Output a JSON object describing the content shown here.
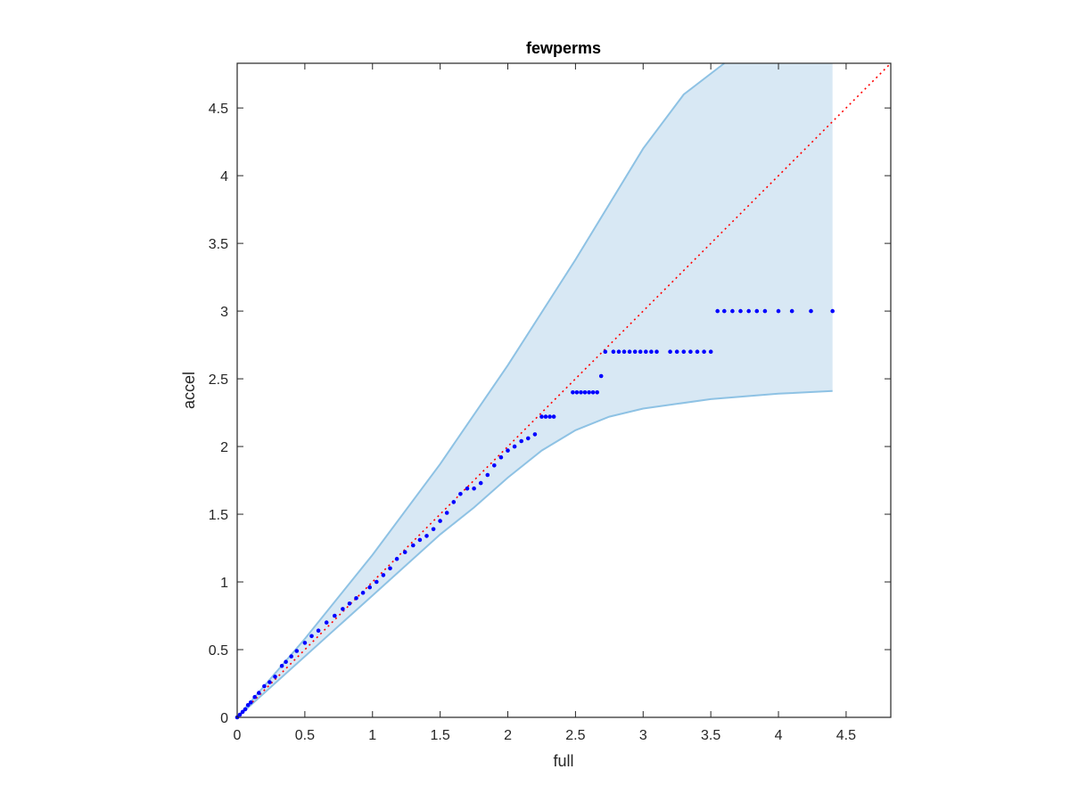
{
  "chart_data": {
    "type": "scatter",
    "title": "fewperms",
    "xlabel": "full",
    "ylabel": "accel",
    "xlim": [
      0,
      4.83
    ],
    "ylim": [
      0,
      4.83
    ],
    "xticks": [
      "0",
      "0.5",
      "1",
      "1.5",
      "2",
      "2.5",
      "3",
      "3.5",
      "4",
      "4.5"
    ],
    "yticks": [
      "0",
      "0.5",
      "1",
      "1.5",
      "2",
      "2.5",
      "3",
      "3.5",
      "4",
      "4.5"
    ],
    "grid": false,
    "reference_line": {
      "style": "dotted",
      "color": "#ff0000",
      "from": [
        0,
        0
      ],
      "to": [
        4.83,
        4.83
      ]
    },
    "confidence_band": {
      "fill": "#d8e8f4",
      "edge": "#8ec2e4",
      "upper": [
        [
          0,
          0
        ],
        [
          0.5,
          0.58
        ],
        [
          1,
          1.2
        ],
        [
          1.5,
          1.87
        ],
        [
          2,
          2.6
        ],
        [
          2.5,
          3.38
        ],
        [
          3,
          4.2
        ],
        [
          3.3,
          4.6
        ],
        [
          3.6,
          4.83
        ],
        [
          4.4,
          4.83
        ]
      ],
      "lower": [
        [
          0,
          0
        ],
        [
          0.5,
          0.45
        ],
        [
          1,
          0.9
        ],
        [
          1.5,
          1.35
        ],
        [
          1.75,
          1.55
        ],
        [
          2,
          1.77
        ],
        [
          2.25,
          1.97
        ],
        [
          2.5,
          2.12
        ],
        [
          2.75,
          2.22
        ],
        [
          3,
          2.28
        ],
        [
          3.5,
          2.35
        ],
        [
          4,
          2.39
        ],
        [
          4.4,
          2.41
        ]
      ]
    },
    "series": [
      {
        "color": "#0000ff",
        "points": [
          [
            0,
            0
          ],
          [
            0.02,
            0.02
          ],
          [
            0.04,
            0.04
          ],
          [
            0.06,
            0.06
          ],
          [
            0.08,
            0.09
          ],
          [
            0.1,
            0.11
          ],
          [
            0.13,
            0.15
          ],
          [
            0.16,
            0.18
          ],
          [
            0.2,
            0.23
          ],
          [
            0.24,
            0.26
          ],
          [
            0.28,
            0.3
          ],
          [
            0.33,
            0.38
          ],
          [
            0.36,
            0.41
          ],
          [
            0.4,
            0.45
          ],
          [
            0.44,
            0.49
          ],
          [
            0.5,
            0.55
          ],
          [
            0.55,
            0.6
          ],
          [
            0.6,
            0.64
          ],
          [
            0.66,
            0.7
          ],
          [
            0.72,
            0.75
          ],
          [
            0.78,
            0.8
          ],
          [
            0.83,
            0.84
          ],
          [
            0.88,
            0.88
          ],
          [
            0.93,
            0.92
          ],
          [
            0.98,
            0.96
          ],
          [
            1.03,
            1.0
          ],
          [
            1.08,
            1.05
          ],
          [
            1.13,
            1.1
          ],
          [
            1.18,
            1.17
          ],
          [
            1.24,
            1.22
          ],
          [
            1.3,
            1.27
          ],
          [
            1.35,
            1.31
          ],
          [
            1.4,
            1.34
          ],
          [
            1.45,
            1.39
          ],
          [
            1.5,
            1.45
          ],
          [
            1.55,
            1.51
          ],
          [
            1.6,
            1.59
          ],
          [
            1.65,
            1.65
          ],
          [
            1.7,
            1.69
          ],
          [
            1.75,
            1.69
          ],
          [
            1.8,
            1.73
          ],
          [
            1.85,
            1.79
          ],
          [
            1.9,
            1.86
          ],
          [
            1.95,
            1.92
          ],
          [
            2.0,
            1.97
          ],
          [
            2.05,
            2.0
          ],
          [
            2.1,
            2.04
          ],
          [
            2.15,
            2.06
          ],
          [
            2.2,
            2.09
          ],
          [
            2.25,
            2.22
          ],
          [
            2.28,
            2.22
          ],
          [
            2.31,
            2.22
          ],
          [
            2.34,
            2.22
          ],
          [
            2.48,
            2.4
          ],
          [
            2.51,
            2.4
          ],
          [
            2.54,
            2.4
          ],
          [
            2.57,
            2.4
          ],
          [
            2.6,
            2.4
          ],
          [
            2.63,
            2.4
          ],
          [
            2.66,
            2.4
          ],
          [
            2.69,
            2.52
          ],
          [
            2.72,
            2.7
          ],
          [
            2.78,
            2.7
          ],
          [
            2.82,
            2.7
          ],
          [
            2.86,
            2.7
          ],
          [
            2.9,
            2.7
          ],
          [
            2.94,
            2.7
          ],
          [
            2.98,
            2.7
          ],
          [
            3.02,
            2.7
          ],
          [
            3.06,
            2.7
          ],
          [
            3.1,
            2.7
          ],
          [
            3.2,
            2.7
          ],
          [
            3.25,
            2.7
          ],
          [
            3.3,
            2.7
          ],
          [
            3.35,
            2.7
          ],
          [
            3.4,
            2.7
          ],
          [
            3.45,
            2.7
          ],
          [
            3.5,
            2.7
          ],
          [
            3.55,
            3.0
          ],
          [
            3.6,
            3.0
          ],
          [
            3.66,
            3.0
          ],
          [
            3.72,
            3.0
          ],
          [
            3.78,
            3.0
          ],
          [
            3.84,
            3.0
          ],
          [
            3.9,
            3.0
          ],
          [
            4.0,
            3.0
          ],
          [
            4.1,
            3.0
          ],
          [
            4.24,
            3.0
          ],
          [
            4.4,
            3.0
          ]
        ]
      }
    ]
  }
}
